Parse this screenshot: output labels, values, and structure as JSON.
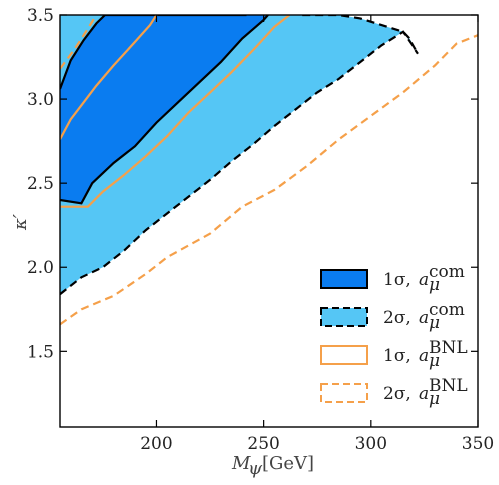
{
  "chart_data": {
    "type": "area",
    "xlabel": "M_ψ [GeV]",
    "xlabel_main": "M",
    "xlabel_sub": "ψ",
    "xlabel_unit": "[GeV]",
    "ylabel": "κ′",
    "xlim": [
      155,
      350
    ],
    "ylim": [
      1.05,
      3.5
    ],
    "x_ticks": [
      200,
      250,
      300,
      350
    ],
    "y_ticks": [
      1.5,
      2.0,
      2.5,
      3.0,
      3.5
    ],
    "x_tick_labels": [
      "200",
      "250",
      "300",
      "350"
    ],
    "y_tick_labels": [
      "1.5",
      "2.0",
      "2.5",
      "3.0",
      "3.5"
    ],
    "grid": false,
    "legend_position": "bottom-right",
    "colors": {
      "one_sigma_fill": "#0a7cf0",
      "two_sigma_fill": "#55c6f5",
      "bnl_line": "#f5a04a",
      "edge": "#000000"
    },
    "series": [
      {
        "name": "1σ, a_μ^com",
        "label_main": "1σ,",
        "label_sym": "a",
        "label_sub": "μ",
        "label_sup": "com",
        "kind": "filled-band",
        "upper": [
          [
            155,
            3.06
          ],
          [
            160,
            3.23
          ],
          [
            166,
            3.35
          ],
          [
            172,
            3.45
          ],
          [
            176,
            3.5
          ],
          [
            242,
            3.5
          ]
        ],
        "lower": [
          [
            155,
            2.4
          ],
          [
            165,
            2.38
          ],
          [
            170,
            2.5
          ],
          [
            175,
            2.56
          ],
          [
            180,
            2.62
          ],
          [
            190,
            2.72
          ],
          [
            200,
            2.86
          ],
          [
            210,
            2.98
          ],
          [
            220,
            3.1
          ],
          [
            230,
            3.22
          ],
          [
            240,
            3.36
          ],
          [
            250,
            3.47
          ],
          [
            252,
            3.5
          ]
        ]
      },
      {
        "name": "2σ, a_μ^com",
        "label_main": "2σ,",
        "label_sym": "a",
        "label_sub": "μ",
        "label_sup": "com",
        "kind": "filled-band",
        "upper": [
          [
            155,
            3.5
          ],
          [
            268,
            3.5
          ],
          [
            285,
            3.5
          ],
          [
            295,
            3.48
          ],
          [
            305,
            3.44
          ],
          [
            315,
            3.4
          ],
          [
            318,
            3.36
          ],
          [
            322,
            3.27
          ]
        ],
        "lower": [
          [
            155,
            1.84
          ],
          [
            165,
            1.94
          ],
          [
            175,
            2.0
          ],
          [
            185,
            2.1
          ],
          [
            195,
            2.22
          ],
          [
            205,
            2.32
          ],
          [
            215,
            2.42
          ],
          [
            225,
            2.52
          ],
          [
            235,
            2.63
          ],
          [
            245,
            2.73
          ],
          [
            255,
            2.84
          ],
          [
            265,
            2.94
          ],
          [
            275,
            3.04
          ],
          [
            285,
            3.12
          ],
          [
            295,
            3.22
          ],
          [
            305,
            3.32
          ],
          [
            315,
            3.4
          ],
          [
            322,
            3.27
          ]
        ]
      },
      {
        "name": "1σ, a_μ^BNL",
        "label_main": "1σ,",
        "label_sym": "a",
        "label_sub": "μ",
        "label_sup": "BNL",
        "kind": "solid-line",
        "upper": [
          [
            155,
            2.76
          ],
          [
            160,
            2.88
          ],
          [
            166,
            2.98
          ],
          [
            172,
            3.08
          ],
          [
            180,
            3.2
          ],
          [
            190,
            3.34
          ],
          [
            197,
            3.44
          ],
          [
            200,
            3.5
          ]
        ],
        "lower": [
          [
            155,
            2.36
          ],
          [
            168,
            2.36
          ],
          [
            175,
            2.45
          ],
          [
            185,
            2.55
          ],
          [
            195,
            2.66
          ],
          [
            205,
            2.78
          ],
          [
            215,
            2.92
          ],
          [
            225,
            3.04
          ],
          [
            235,
            3.16
          ],
          [
            245,
            3.29
          ],
          [
            255,
            3.43
          ],
          [
            262,
            3.5
          ]
        ]
      },
      {
        "name": "2σ, a_μ^BNL",
        "label_main": "2σ,",
        "label_sym": "a",
        "label_sub": "μ",
        "label_sup": "BNL",
        "kind": "dashed-line",
        "upper": [
          [
            155,
            3.18
          ],
          [
            162,
            3.3
          ],
          [
            168,
            3.42
          ],
          [
            172,
            3.5
          ]
        ],
        "lower": [
          [
            155,
            1.66
          ],
          [
            165,
            1.75
          ],
          [
            180,
            1.83
          ],
          [
            195,
            1.96
          ],
          [
            205,
            2.06
          ],
          [
            215,
            2.13
          ],
          [
            225,
            2.2
          ],
          [
            240,
            2.36
          ],
          [
            255,
            2.46
          ],
          [
            270,
            2.6
          ],
          [
            285,
            2.76
          ],
          [
            300,
            2.9
          ],
          [
            315,
            3.04
          ],
          [
            330,
            3.2
          ],
          [
            340,
            3.33
          ],
          [
            350,
            3.38
          ]
        ]
      }
    ]
  }
}
